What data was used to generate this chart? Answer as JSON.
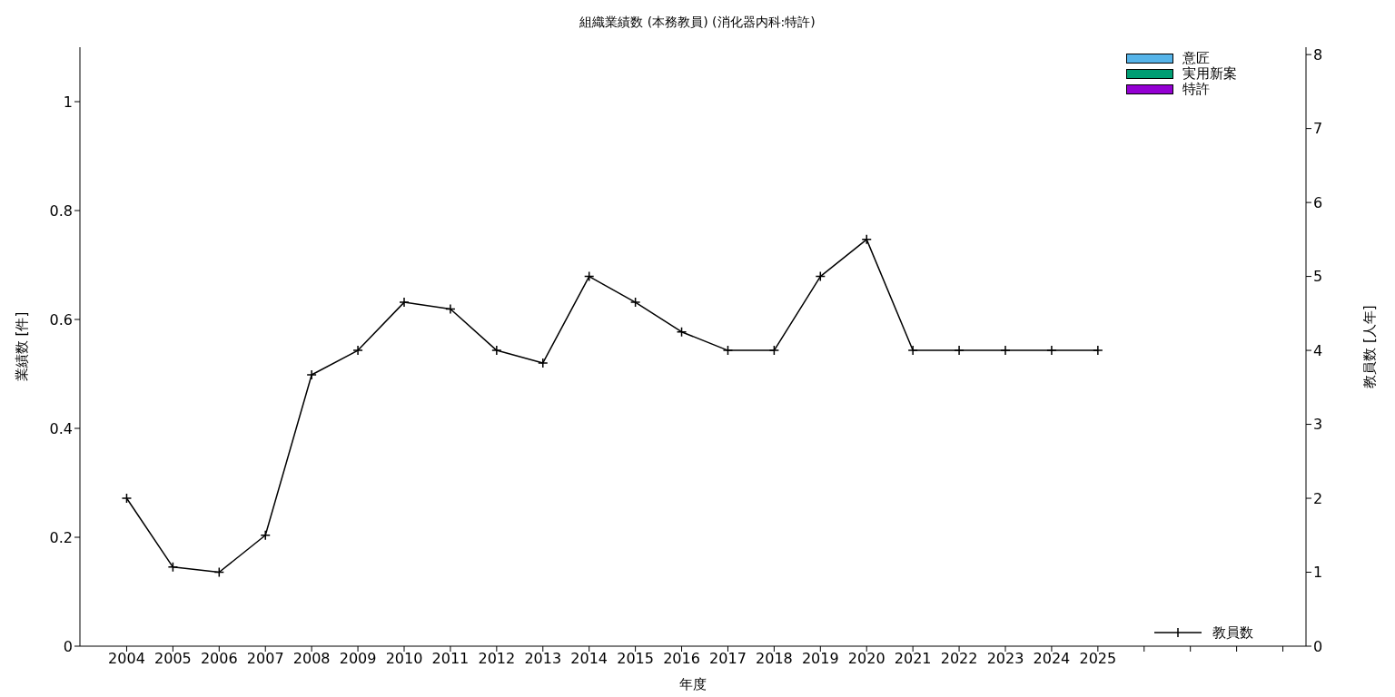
{
  "chart_data": {
    "type": "bar",
    "title": "組織業績数 (本務教員) (消化器内科:特許)",
    "xlabel": "年度",
    "ylabel": "業績数 [件]",
    "y2label": "教員数 [人年]",
    "categories": [
      "2004",
      "2005",
      "2006",
      "2007",
      "2008",
      "2009",
      "2010",
      "2011",
      "2012",
      "2013",
      "2014",
      "2015",
      "2016",
      "2017",
      "2018",
      "2019",
      "2020",
      "2021",
      "2022",
      "2023",
      "2024",
      "2025",
      null,
      null,
      null,
      null
    ],
    "series": [
      {
        "name": "意匠",
        "color": "#56b4e9",
        "values": [
          0,
          0,
          0,
          0,
          0,
          0,
          0,
          0,
          0,
          0,
          0,
          0,
          0,
          0,
          0,
          0,
          0,
          0,
          0,
          0,
          0,
          0,
          null,
          null,
          null,
          null
        ]
      },
      {
        "name": "実用新案",
        "color": "#009e73",
        "values": [
          0,
          0,
          0,
          0,
          0,
          0,
          0,
          0,
          0,
          0,
          0,
          0,
          0,
          0,
          0,
          0,
          0,
          0,
          0,
          0,
          0,
          0,
          null,
          null,
          null,
          null
        ]
      },
      {
        "name": "特許",
        "color": "#9400d3",
        "values": [
          0,
          0,
          0,
          0,
          0,
          0,
          0,
          0,
          0,
          0,
          0,
          0,
          0,
          0,
          0,
          0,
          0,
          0,
          0,
          0,
          0,
          0,
          null,
          null,
          null,
          null
        ]
      },
      {
        "name": "教員数",
        "type": "line",
        "axis": "y2",
        "color": "#000000",
        "marker": "cross",
        "values": [
          2,
          1.07,
          1,
          1.5,
          3.67,
          4,
          4.65,
          4.56,
          4,
          3.83,
          5,
          4.65,
          4.25,
          4,
          4,
          5,
          5.5,
          4,
          4,
          4,
          4,
          4,
          null,
          null,
          null,
          null
        ]
      }
    ],
    "ylim": [
      0,
      1.1
    ],
    "yticks": [
      0,
      0.2,
      0.4,
      0.6,
      0.8,
      1
    ],
    "y2lim": [
      0,
      8.1
    ],
    "y2ticks": [
      0,
      1,
      2,
      3,
      4,
      5,
      6,
      7,
      8
    ],
    "legend": "top right"
  }
}
